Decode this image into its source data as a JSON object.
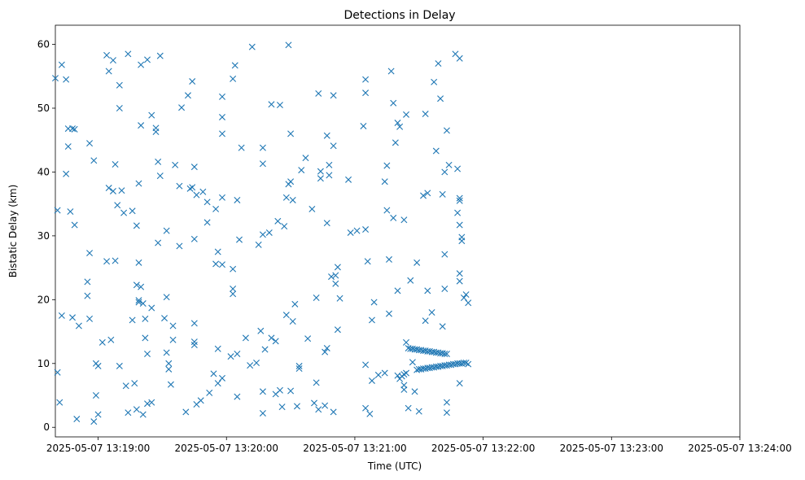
{
  "chart_data": {
    "type": "scatter",
    "title": "Detections in Delay",
    "xlabel": "Time (UTC)",
    "ylabel": "Bistatic Delay (km)",
    "marker": "x",
    "color": "#1f77b4",
    "grid": false,
    "xlim": [
      "2025-05-07 13:18:40",
      "2025-05-07 13:24:00"
    ],
    "ylim": [
      -1.5,
      63
    ],
    "x_ticks": [
      "2025-05-07 13:19:00",
      "2025-05-07 13:20:00",
      "2025-05-07 13:21:00",
      "2025-05-07 13:22:00",
      "2025-05-07 13:23:00",
      "2025-05-07 13:24:00"
    ],
    "x_tick_labels": [
      "2025-05-07 13:19:00",
      "2025-05-07 13:20:00",
      "2025-05-07 13:21:00",
      "2025-05-07 13:22:00",
      "2025-05-07 13:23:00",
      "2025-05-07 13:24:00"
    ],
    "y_ticks": [
      0,
      10,
      20,
      30,
      40,
      50,
      60
    ],
    "points": [
      [
        "13:18:40",
        54.7
      ],
      [
        "13:18:43",
        56.8
      ],
      [
        "13:18:45",
        54.5
      ],
      [
        "13:18:41",
        34.0
      ],
      [
        "13:18:41",
        8.6
      ],
      [
        "13:18:42",
        3.9
      ],
      [
        "13:18:43",
        17.5
      ],
      [
        "13:18:45",
        39.7
      ],
      [
        "13:18:46",
        44.0
      ],
      [
        "13:18:46",
        46.8
      ],
      [
        "13:18:47",
        33.8
      ],
      [
        "13:18:48",
        46.8
      ],
      [
        "13:18:49",
        46.7
      ],
      [
        "13:18:48",
        17.2
      ],
      [
        "13:18:49",
        31.7
      ],
      [
        "13:18:51",
        15.9
      ],
      [
        "13:18:50",
        1.3
      ],
      [
        "13:18:55",
        22.8
      ],
      [
        "13:18:55",
        20.6
      ],
      [
        "13:18:56",
        27.3
      ],
      [
        "13:18:56",
        17.0
      ],
      [
        "13:18:56",
        44.5
      ],
      [
        "13:18:58",
        41.8
      ],
      [
        "13:18:58",
        0.9
      ],
      [
        "13:18:59",
        10.0
      ],
      [
        "13:18:59",
        5.0
      ],
      [
        "13:19:00",
        2.0
      ],
      [
        "13:19:00",
        9.6
      ],
      [
        "13:19:02",
        13.3
      ],
      [
        "13:19:04",
        58.3
      ],
      [
        "13:19:04",
        26.0
      ],
      [
        "13:19:05",
        55.8
      ],
      [
        "13:19:05",
        37.5
      ],
      [
        "13:19:06",
        13.7
      ],
      [
        "13:19:07",
        37.0
      ],
      [
        "13:19:07",
        57.5
      ],
      [
        "13:19:08",
        41.2
      ],
      [
        "13:19:08",
        26.1
      ],
      [
        "13:19:09",
        34.8
      ],
      [
        "13:19:10",
        50.0
      ],
      [
        "13:19:10",
        53.6
      ],
      [
        "13:19:10",
        9.6
      ],
      [
        "13:19:11",
        37.1
      ],
      [
        "13:19:12",
        33.6
      ],
      [
        "13:19:13",
        6.5
      ],
      [
        "13:19:14",
        2.3
      ],
      [
        "13:19:14",
        58.5
      ],
      [
        "13:19:16",
        33.9
      ],
      [
        "13:19:16",
        16.8
      ],
      [
        "13:19:17",
        6.9
      ],
      [
        "13:19:18",
        31.6
      ],
      [
        "13:19:18",
        22.3
      ],
      [
        "13:19:18",
        2.8
      ],
      [
        "13:19:19",
        25.8
      ],
      [
        "13:19:19",
        38.2
      ],
      [
        "13:19:19",
        19.9
      ],
      [
        "13:19:19",
        19.6
      ],
      [
        "13:19:20",
        22.0
      ],
      [
        "13:19:20",
        47.3
      ],
      [
        "13:19:20",
        56.8
      ],
      [
        "13:19:21",
        19.4
      ],
      [
        "13:19:21",
        2.0
      ],
      [
        "13:19:22",
        14.0
      ],
      [
        "13:19:22",
        17.0
      ],
      [
        "13:19:23",
        57.6
      ],
      [
        "13:19:23",
        3.7
      ],
      [
        "13:19:23",
        11.5
      ],
      [
        "13:19:25",
        48.9
      ],
      [
        "13:19:25",
        18.7
      ],
      [
        "13:19:25",
        3.9
      ],
      [
        "13:19:27",
        46.9
      ],
      [
        "13:19:27",
        46.3
      ],
      [
        "13:19:28",
        41.6
      ],
      [
        "13:19:28",
        28.9
      ],
      [
        "13:19:29",
        58.2
      ],
      [
        "13:19:29",
        39.4
      ],
      [
        "13:19:31",
        17.1
      ],
      [
        "13:19:32",
        20.4
      ],
      [
        "13:19:32",
        11.7
      ],
      [
        "13:19:32",
        30.8
      ],
      [
        "13:19:33",
        10.0
      ],
      [
        "13:19:33",
        9.1
      ],
      [
        "13:19:34",
        6.7
      ],
      [
        "13:19:35",
        13.7
      ],
      [
        "13:19:35",
        15.9
      ],
      [
        "13:19:36",
        41.1
      ],
      [
        "13:19:38",
        37.8
      ],
      [
        "13:19:38",
        28.4
      ],
      [
        "13:19:39",
        50.1
      ],
      [
        "13:19:41",
        2.4
      ],
      [
        "13:19:42",
        52.0
      ],
      [
        "13:19:43",
        37.4
      ],
      [
        "13:19:44",
        54.2
      ],
      [
        "13:19:44",
        37.6
      ],
      [
        "13:19:45",
        16.3
      ],
      [
        "13:19:45",
        13.4
      ],
      [
        "13:19:45",
        12.9
      ],
      [
        "13:19:45",
        29.5
      ],
      [
        "13:19:45",
        40.8
      ],
      [
        "13:19:46",
        36.4
      ],
      [
        "13:19:46",
        3.6
      ],
      [
        "13:19:48",
        4.2
      ],
      [
        "13:19:49",
        36.9
      ],
      [
        "13:19:51",
        35.3
      ],
      [
        "13:19:51",
        32.1
      ],
      [
        "13:19:52",
        5.4
      ],
      [
        "13:19:54",
        8.4
      ],
      [
        "13:19:55",
        34.2
      ],
      [
        "13:19:55",
        25.6
      ],
      [
        "13:19:56",
        27.5
      ],
      [
        "13:19:56",
        12.3
      ],
      [
        "13:19:56",
        6.9
      ],
      [
        "13:19:58",
        51.8
      ],
      [
        "13:19:58",
        48.6
      ],
      [
        "13:19:58",
        46.0
      ],
      [
        "13:19:58",
        36.0
      ],
      [
        "13:19:58",
        25.5
      ],
      [
        "13:19:58",
        7.7
      ],
      [
        "13:20:02",
        11.1
      ],
      [
        "13:20:03",
        54.6
      ],
      [
        "13:20:03",
        24.8
      ],
      [
        "13:20:03",
        21.7
      ],
      [
        "13:20:03",
        20.9
      ],
      [
        "13:20:04",
        56.7
      ],
      [
        "13:20:05",
        35.6
      ],
      [
        "13:20:05",
        11.5
      ],
      [
        "13:20:05",
        4.8
      ],
      [
        "13:20:06",
        29.4
      ],
      [
        "13:20:07",
        43.8
      ],
      [
        "13:20:09",
        14.0
      ],
      [
        "13:20:11",
        9.7
      ],
      [
        "13:20:12",
        59.6
      ],
      [
        "13:20:14",
        10.1
      ],
      [
        "13:20:15",
        28.6
      ],
      [
        "13:20:16",
        15.1
      ],
      [
        "13:20:17",
        43.8
      ],
      [
        "13:20:17",
        41.3
      ],
      [
        "13:20:17",
        30.2
      ],
      [
        "13:20:17",
        2.2
      ],
      [
        "13:20:17",
        5.6
      ],
      [
        "13:20:18",
        12.2
      ],
      [
        "13:20:20",
        30.5
      ],
      [
        "13:20:21",
        50.6
      ],
      [
        "13:20:21",
        14.0
      ],
      [
        "13:20:23",
        13.5
      ],
      [
        "13:20:23",
        5.2
      ],
      [
        "13:20:24",
        32.3
      ],
      [
        "13:20:25",
        50.5
      ],
      [
        "13:20:25",
        5.8
      ],
      [
        "13:20:26",
        3.2
      ],
      [
        "13:20:27",
        31.5
      ],
      [
        "13:20:28",
        36.0
      ],
      [
        "13:20:28",
        17.6
      ],
      [
        "13:20:29",
        59.9
      ],
      [
        "13:20:29",
        38.1
      ],
      [
        "13:20:30",
        5.7
      ],
      [
        "13:20:30",
        38.5
      ],
      [
        "13:20:30",
        46.0
      ],
      [
        "13:20:31",
        35.6
      ],
      [
        "13:20:31",
        16.6
      ],
      [
        "13:20:32",
        19.3
      ],
      [
        "13:20:33",
        3.3
      ],
      [
        "13:20:34",
        9.2
      ],
      [
        "13:20:34",
        9.6
      ],
      [
        "13:20:35",
        40.3
      ],
      [
        "13:20:37",
        42.2
      ],
      [
        "13:20:38",
        13.9
      ],
      [
        "13:20:40",
        34.2
      ],
      [
        "13:20:41",
        3.8
      ],
      [
        "13:20:42",
        20.3
      ],
      [
        "13:20:42",
        7.0
      ],
      [
        "13:20:43",
        52.3
      ],
      [
        "13:20:43",
        2.8
      ],
      [
        "13:20:44",
        40.1
      ],
      [
        "13:20:44",
        39.0
      ],
      [
        "13:20:46",
        3.4
      ],
      [
        "13:20:46",
        11.8
      ],
      [
        "13:20:47",
        45.7
      ],
      [
        "13:20:47",
        32.0
      ],
      [
        "13:20:47",
        12.4
      ],
      [
        "13:20:48",
        41.1
      ],
      [
        "13:20:48",
        39.5
      ],
      [
        "13:20:49",
        23.6
      ],
      [
        "13:20:50",
        52.0
      ],
      [
        "13:20:50",
        44.1
      ],
      [
        "13:20:50",
        2.4
      ],
      [
        "13:20:51",
        23.8
      ],
      [
        "13:20:51",
        22.5
      ],
      [
        "13:20:52",
        25.1
      ],
      [
        "13:20:52",
        15.3
      ],
      [
        "13:20:53",
        20.2
      ],
      [
        "13:20:57",
        38.8
      ],
      [
        "13:20:58",
        30.5
      ],
      [
        "13:21:01",
        30.8
      ],
      [
        "13:21:04",
        47.2
      ],
      [
        "13:21:05",
        54.5
      ],
      [
        "13:21:05",
        52.4
      ],
      [
        "13:21:05",
        31.0
      ],
      [
        "13:21:05",
        3.0
      ],
      [
        "13:21:05",
        9.8
      ],
      [
        "13:21:06",
        26.0
      ],
      [
        "13:21:07",
        2.1
      ],
      [
        "13:21:08",
        7.3
      ],
      [
        "13:21:08",
        16.8
      ],
      [
        "13:21:09",
        19.6
      ],
      [
        "13:21:11",
        8.2
      ],
      [
        "13:21:14",
        8.5
      ],
      [
        "13:21:14",
        38.5
      ],
      [
        "13:21:15",
        34.0
      ],
      [
        "13:21:15",
        41.0
      ],
      [
        "13:21:16",
        26.3
      ],
      [
        "13:21:16",
        17.8
      ],
      [
        "13:21:17",
        55.8
      ],
      [
        "13:21:18",
        32.8
      ],
      [
        "13:21:18",
        50.8
      ],
      [
        "13:21:19",
        44.6
      ],
      [
        "13:21:20",
        47.7
      ],
      [
        "13:21:20",
        21.4
      ],
      [
        "13:21:21",
        47.1
      ],
      [
        "13:21:23",
        6.6
      ],
      [
        "13:21:23",
        5.9
      ],
      [
        "13:21:23",
        32.5
      ],
      [
        "13:21:24",
        49.0
      ],
      [
        "13:21:24",
        13.3
      ],
      [
        "13:21:25",
        3.0
      ],
      [
        "13:21:26",
        23.0
      ],
      [
        "13:21:27",
        10.2
      ],
      [
        "13:21:28",
        5.6
      ],
      [
        "13:21:29",
        25.8
      ],
      [
        "13:21:30",
        2.5
      ],
      [
        "13:21:32",
        36.3
      ],
      [
        "13:21:33",
        49.1
      ],
      [
        "13:21:33",
        16.7
      ],
      [
        "13:21:34",
        21.4
      ],
      [
        "13:21:34",
        36.7
      ],
      [
        "13:21:36",
        18.0
      ],
      [
        "13:21:37",
        54.1
      ],
      [
        "13:21:38",
        43.3
      ],
      [
        "13:21:39",
        57.0
      ],
      [
        "13:21:40",
        51.5
      ],
      [
        "13:21:41",
        36.5
      ],
      [
        "13:21:41",
        15.8
      ],
      [
        "13:21:42",
        40.0
      ],
      [
        "13:21:42",
        27.1
      ],
      [
        "13:21:42",
        21.7
      ],
      [
        "13:21:43",
        46.5
      ],
      [
        "13:21:44",
        41.1
      ],
      [
        "13:21:43",
        3.9
      ],
      [
        "13:21:43",
        2.3
      ],
      [
        "13:21:47",
        58.5
      ],
      [
        "13:21:49",
        57.8
      ],
      [
        "13:21:48",
        40.5
      ],
      [
        "13:21:48",
        33.6
      ],
      [
        "13:21:49",
        35.5
      ],
      [
        "13:21:49",
        35.9
      ],
      [
        "13:21:49",
        31.7
      ],
      [
        "13:21:49",
        24.1
      ],
      [
        "13:21:49",
        22.9
      ],
      [
        "13:21:49",
        6.9
      ],
      [
        "13:21:50",
        29.2
      ],
      [
        "13:21:50",
        29.8
      ],
      [
        "13:21:51",
        20.3
      ],
      [
        "13:21:52",
        20.8
      ],
      [
        "13:21:53",
        19.5
      ],
      [
        "13:21:22",
        8.0
      ],
      [
        "13:21:23",
        8.3
      ],
      [
        "13:21:21",
        7.6
      ],
      [
        "13:21:24",
        8.5
      ],
      [
        "13:21:20",
        8.1
      ],
      [
        "13:21:25",
        12.4
      ],
      [
        "13:21:26",
        12.3
      ],
      [
        "13:21:27",
        12.3
      ],
      [
        "13:21:28",
        12.2
      ],
      [
        "13:21:29",
        12.2
      ],
      [
        "13:21:30",
        12.1
      ],
      [
        "13:21:31",
        12.1
      ],
      [
        "13:21:32",
        12.0
      ],
      [
        "13:21:33",
        12.0
      ],
      [
        "13:21:34",
        11.9
      ],
      [
        "13:21:35",
        11.9
      ],
      [
        "13:21:36",
        11.8
      ],
      [
        "13:21:37",
        11.8
      ],
      [
        "13:21:38",
        11.7
      ],
      [
        "13:21:39",
        11.7
      ],
      [
        "13:21:40",
        11.6
      ],
      [
        "13:21:41",
        11.6
      ],
      [
        "13:21:42",
        11.5
      ],
      [
        "13:21:43",
        11.5
      ],
      [
        "13:21:29",
        9.0
      ],
      [
        "13:21:30",
        9.1
      ],
      [
        "13:21:31",
        9.1
      ],
      [
        "13:21:32",
        9.2
      ],
      [
        "13:21:33",
        9.2
      ],
      [
        "13:21:34",
        9.3
      ],
      [
        "13:21:35",
        9.3
      ],
      [
        "13:21:36",
        9.4
      ],
      [
        "13:21:37",
        9.4
      ],
      [
        "13:21:38",
        9.5
      ],
      [
        "13:21:39",
        9.5
      ],
      [
        "13:21:40",
        9.6
      ],
      [
        "13:21:41",
        9.6
      ],
      [
        "13:21:42",
        9.7
      ],
      [
        "13:21:43",
        9.7
      ],
      [
        "13:21:44",
        9.8
      ],
      [
        "13:21:45",
        9.8
      ],
      [
        "13:21:46",
        9.9
      ],
      [
        "13:21:47",
        9.9
      ],
      [
        "13:21:48",
        10.0
      ],
      [
        "13:21:49",
        10.0
      ],
      [
        "13:21:50",
        10.0
      ],
      [
        "13:21:51",
        10.1
      ],
      [
        "13:21:52",
        10.1
      ],
      [
        "13:21:53",
        9.9
      ]
    ]
  }
}
